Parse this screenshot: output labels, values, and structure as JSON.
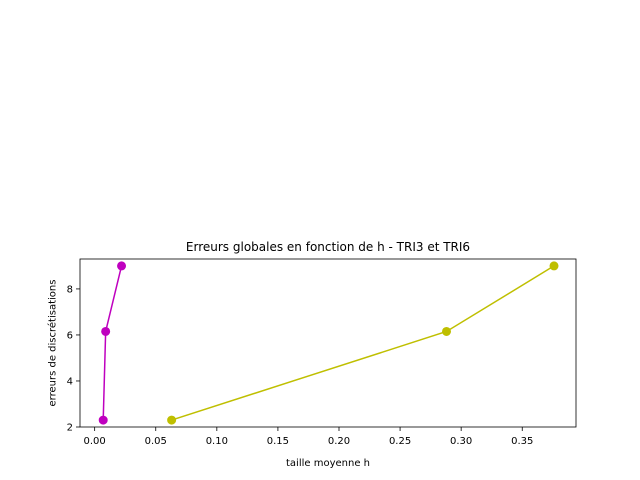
{
  "chart_data": {
    "type": "line",
    "title": "Erreurs globales en fonction de h - TRI3 et TRI6",
    "xlabel": "taille moyenne h",
    "ylabel": "erreurs de discrétisations",
    "xlim": [
      -0.012,
      0.394
    ],
    "ylim": [
      2.0,
      9.3
    ],
    "xticks": [
      0.0,
      0.05,
      0.1,
      0.15,
      0.2,
      0.25,
      0.3,
      0.35
    ],
    "xtick_labels": [
      "0.00",
      "0.05",
      "0.10",
      "0.15",
      "0.20",
      "0.25",
      "0.30",
      "0.35"
    ],
    "yticks": [
      2,
      4,
      6,
      8
    ],
    "ytick_labels": [
      "2",
      "4",
      "6",
      "8"
    ],
    "grid": false,
    "series": [
      {
        "color": "#bf00bf",
        "marker": "circle",
        "x": [
          0.007,
          0.009,
          0.022
        ],
        "y": [
          2.3,
          6.15,
          9.0
        ]
      },
      {
        "color": "#bfbf00",
        "marker": "circle",
        "x": [
          0.063,
          0.288,
          0.376
        ],
        "y": [
          2.3,
          6.15,
          9.0
        ]
      }
    ]
  }
}
